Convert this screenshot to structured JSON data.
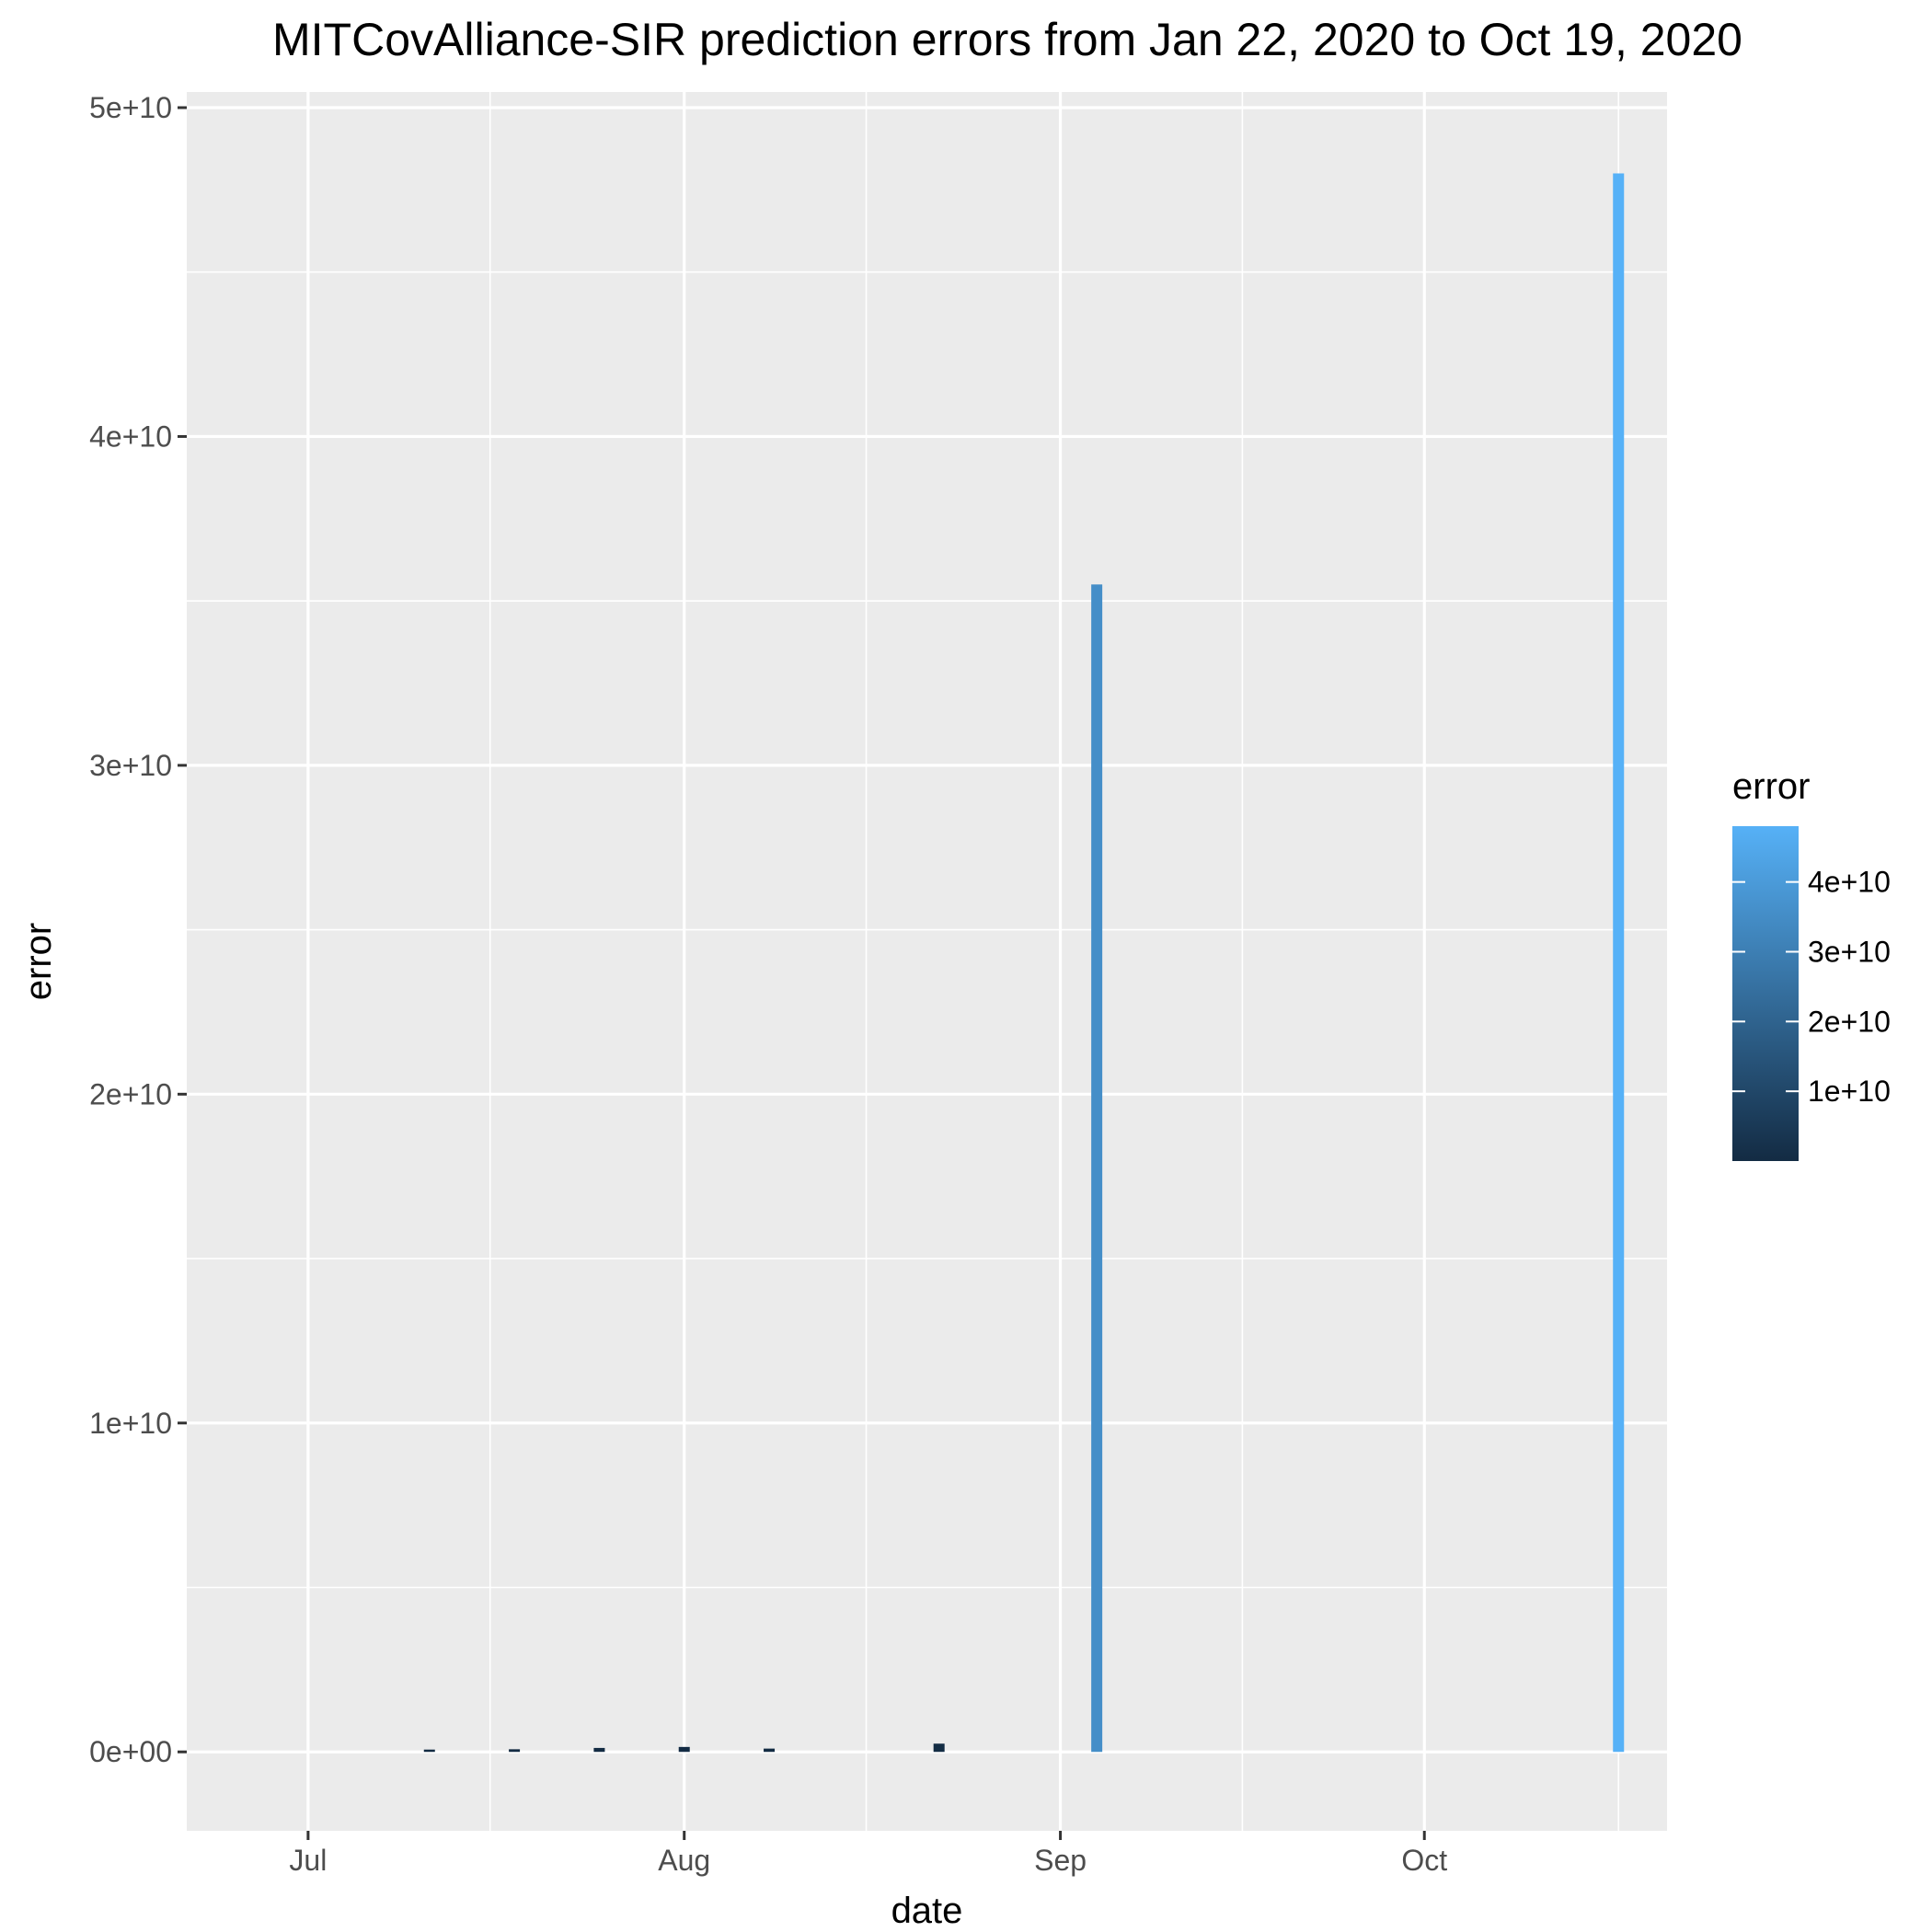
{
  "chart_data": {
    "type": "bar",
    "title": "MITCovAlliance-SIR prediction errors from Jan 22, 2020 to Oct 19, 2020",
    "xlabel": "date",
    "ylabel": "error",
    "x_range": [
      "2020-06-21",
      "2020-10-21"
    ],
    "ylim": [
      -2400000000.0,
      50000000000.0
    ],
    "y_ticks": [
      0,
      10000000000.0,
      20000000000.0,
      30000000000.0,
      40000000000.0,
      50000000000.0
    ],
    "y_tick_labels": [
      "0e+00",
      "1e+10",
      "2e+10",
      "3e+10",
      "4e+10",
      "5e+10"
    ],
    "x_ticks": [
      "2020-07-01",
      "2020-08-01",
      "2020-09-01",
      "2020-10-01"
    ],
    "x_tick_labels": [
      "Jul",
      "Aug",
      "Sep",
      "Oct"
    ],
    "grid": true,
    "legend": {
      "title": "error",
      "placement": "right",
      "type": "colorbar",
      "color_low": "#132b43",
      "color_high": "#56b1f7",
      "range": [
        0,
        48000000000.0
      ],
      "ticks": [
        10000000000.0,
        20000000000.0,
        30000000000.0,
        40000000000.0
      ],
      "tick_labels": [
        "1e+10",
        "2e+10",
        "3e+10",
        "4e+10"
      ]
    },
    "bar_color_low": "#132b43",
    "bar_color_high": "#56b1f7",
    "x": [
      "2020-07-11",
      "2020-07-18",
      "2020-07-25",
      "2020-08-01",
      "2020-08-08",
      "2020-08-22",
      "2020-09-04",
      "2020-10-17"
    ],
    "values": [
      50000000.0,
      80000000.0,
      120000000.0,
      150000000.0,
      100000000.0,
      250000000.0,
      35500000000.0,
      48000000000.0
    ]
  }
}
